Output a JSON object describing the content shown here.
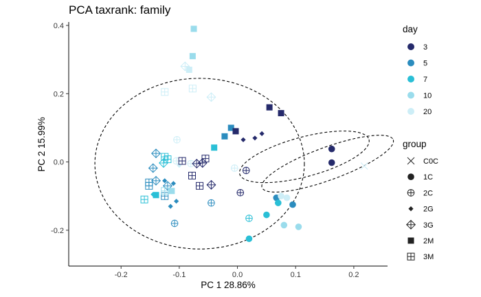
{
  "chart_data": {
    "type": "scatter",
    "title": "PCA taxrank: family",
    "xlabel": "PC 1 28.86%",
    "ylabel": "PC 2 15.99%",
    "xlim": [
      -0.29,
      0.258
    ],
    "ylim": [
      -0.305,
      0.41
    ],
    "x_ticks": [
      -0.2,
      -0.1,
      0.0,
      0.1,
      0.2
    ],
    "x_tick_labels": [
      "-0.2",
      "-0.1",
      "0.0",
      "0.1",
      "0.2"
    ],
    "y_ticks": [
      -0.2,
      0.0,
      0.2,
      0.4
    ],
    "y_tick_labels": [
      "-0.2",
      "0.0",
      "0.2",
      "0.4"
    ],
    "grid": false,
    "legend_position": "right",
    "legends": {
      "day": {
        "title": "day",
        "entries": [
          {
            "label": "3",
            "color": "#252a6b"
          },
          {
            "label": "5",
            "color": "#2b8cbe"
          },
          {
            "label": "7",
            "color": "#2abfd6"
          },
          {
            "label": "10",
            "color": "#9adcec"
          },
          {
            "label": "20",
            "color": "#cdeef7"
          }
        ]
      },
      "group": {
        "title": "group",
        "entries": [
          {
            "label": "C0C",
            "shape": "cross"
          },
          {
            "label": "1C",
            "shape": "circle"
          },
          {
            "label": "2C",
            "shape": "circle-plus"
          },
          {
            "label": "2G",
            "shape": "diamond"
          },
          {
            "label": "3G",
            "shape": "diamond-plus"
          },
          {
            "label": "2M",
            "shape": "square"
          },
          {
            "label": "3M",
            "shape": "square-grid"
          }
        ]
      }
    },
    "points": [
      {
        "x": -0.075,
        "y": 0.39,
        "group": "2M",
        "day": "10"
      },
      {
        "x": -0.077,
        "y": 0.31,
        "group": "2M",
        "day": "10"
      },
      {
        "x": -0.09,
        "y": 0.28,
        "group": "3G",
        "day": "20"
      },
      {
        "x": -0.083,
        "y": 0.27,
        "group": "2M",
        "day": "20"
      },
      {
        "x": -0.125,
        "y": 0.205,
        "group": "3M",
        "day": "20"
      },
      {
        "x": -0.077,
        "y": 0.215,
        "group": "3M",
        "day": "20"
      },
      {
        "x": -0.045,
        "y": 0.19,
        "group": "3G",
        "day": "20"
      },
      {
        "x": -0.104,
        "y": 0.065,
        "group": "2C",
        "day": "20"
      },
      {
        "x": 0.055,
        "y": 0.16,
        "group": "2M",
        "day": "3"
      },
      {
        "x": 0.075,
        "y": 0.143,
        "group": "2M",
        "day": "3"
      },
      {
        "x": 0.042,
        "y": 0.083,
        "group": "2G",
        "day": "3"
      },
      {
        "x": 0.03,
        "y": 0.07,
        "group": "2G",
        "day": "3"
      },
      {
        "x": 0.01,
        "y": 0.065,
        "group": "2G",
        "day": "3"
      },
      {
        "x": -0.011,
        "y": 0.1,
        "group": "2M",
        "day": "5"
      },
      {
        "x": -0.003,
        "y": 0.09,
        "group": "2M",
        "day": "3"
      },
      {
        "x": -0.022,
        "y": 0.075,
        "group": "2M",
        "day": "5"
      },
      {
        "x": -0.04,
        "y": 0.042,
        "group": "2M",
        "day": "7"
      },
      {
        "x": 0.162,
        "y": 0.038,
        "group": "1C",
        "day": "3"
      },
      {
        "x": 0.162,
        "y": -0.002,
        "group": "1C",
        "day": "3"
      },
      {
        "x": 0.218,
        "y": -0.012,
        "group": "C0C",
        "day": "20"
      },
      {
        "x": -0.14,
        "y": 0.025,
        "group": "3G",
        "day": "5"
      },
      {
        "x": -0.145,
        "y": -0.018,
        "group": "3G",
        "day": "5"
      },
      {
        "x": -0.125,
        "y": 0.015,
        "group": "3M",
        "day": "7"
      },
      {
        "x": -0.12,
        "y": 0.008,
        "group": "3M",
        "day": "7"
      },
      {
        "x": -0.127,
        "y": -0.003,
        "group": "3G",
        "day": "7"
      },
      {
        "x": -0.105,
        "y": 0.003,
        "group": "2C",
        "day": "20"
      },
      {
        "x": -0.1,
        "y": -0.01,
        "group": "2G",
        "day": "20"
      },
      {
        "x": -0.08,
        "y": -0.005,
        "group": "2C",
        "day": "20"
      },
      {
        "x": -0.095,
        "y": 0.003,
        "group": "3M",
        "day": "3"
      },
      {
        "x": -0.07,
        "y": -0.005,
        "group": "3G",
        "day": "3"
      },
      {
        "x": -0.06,
        "y": -0.003,
        "group": "3G",
        "day": "3"
      },
      {
        "x": -0.055,
        "y": 0.01,
        "group": "3M",
        "day": "3"
      },
      {
        "x": -0.078,
        "y": -0.04,
        "group": "3M",
        "day": "3"
      },
      {
        "x": -0.065,
        "y": -0.07,
        "group": "3M",
        "day": "3"
      },
      {
        "x": -0.045,
        "y": -0.067,
        "group": "3G",
        "day": "3"
      },
      {
        "x": -0.045,
        "y": -0.12,
        "group": "2C",
        "day": "5"
      },
      {
        "x": -0.14,
        "y": -0.055,
        "group": "3G",
        "day": "5"
      },
      {
        "x": -0.152,
        "y": -0.06,
        "group": "3M",
        "day": "5"
      },
      {
        "x": -0.152,
        "y": -0.07,
        "group": "3M",
        "day": "5"
      },
      {
        "x": -0.125,
        "y": -0.055,
        "group": "2G",
        "day": "5"
      },
      {
        "x": -0.12,
        "y": -0.07,
        "group": "3G",
        "day": "5"
      },
      {
        "x": -0.11,
        "y": -0.063,
        "group": "2G",
        "day": "5"
      },
      {
        "x": -0.125,
        "y": -0.1,
        "group": "3M",
        "day": "5"
      },
      {
        "x": -0.105,
        "y": -0.115,
        "group": "2G",
        "day": "5"
      },
      {
        "x": -0.115,
        "y": -0.13,
        "group": "2G",
        "day": "5"
      },
      {
        "x": -0.145,
        "y": -0.095,
        "group": "2G",
        "day": "7"
      },
      {
        "x": -0.14,
        "y": -0.097,
        "group": "2M",
        "day": "7"
      },
      {
        "x": -0.16,
        "y": -0.11,
        "group": "3M",
        "day": "7"
      },
      {
        "x": -0.113,
        "y": -0.085,
        "group": "2M",
        "day": "10"
      },
      {
        "x": -0.125,
        "y": -0.085,
        "group": "3M",
        "day": "10"
      },
      {
        "x": -0.108,
        "y": -0.18,
        "group": "2C",
        "day": "5"
      },
      {
        "x": 0.02,
        "y": -0.165,
        "group": "2C",
        "day": "7"
      },
      {
        "x": 0.02,
        "y": -0.225,
        "group": "1C",
        "day": "7"
      },
      {
        "x": 0.05,
        "y": -0.155,
        "group": "1C",
        "day": "7"
      },
      {
        "x": 0.067,
        "y": -0.105,
        "group": "1C",
        "day": "5"
      },
      {
        "x": 0.07,
        "y": -0.12,
        "group": "1C",
        "day": "7"
      },
      {
        "x": 0.095,
        "y": -0.125,
        "group": "1C",
        "day": "5"
      },
      {
        "x": 0.08,
        "y": -0.185,
        "group": "1C",
        "day": "10"
      },
      {
        "x": 0.105,
        "y": -0.19,
        "group": "1C",
        "day": "10"
      },
      {
        "x": 0.075,
        "y": -0.1,
        "group": "1C",
        "day": "20"
      },
      {
        "x": 0.085,
        "y": -0.105,
        "group": "1C",
        "day": "20"
      },
      {
        "x": 0.015,
        "y": -0.025,
        "group": "2C",
        "day": "3"
      },
      {
        "x": -0.005,
        "y": -0.018,
        "group": "2C",
        "day": "20"
      },
      {
        "x": 0.005,
        "y": -0.09,
        "group": "2C",
        "day": "3"
      }
    ],
    "ellipses": [
      {
        "cx": -0.065,
        "cy": -0.005,
        "rx": 0.18,
        "ry": 0.25,
        "angle_deg": 0
      },
      {
        "cx": 0.115,
        "cy": 0.015,
        "rx": 0.115,
        "ry": 0.058,
        "angle_deg": 15
      },
      {
        "cx": 0.155,
        "cy": -0.005,
        "rx": 0.12,
        "ry": 0.048,
        "angle_deg": 20
      }
    ]
  }
}
